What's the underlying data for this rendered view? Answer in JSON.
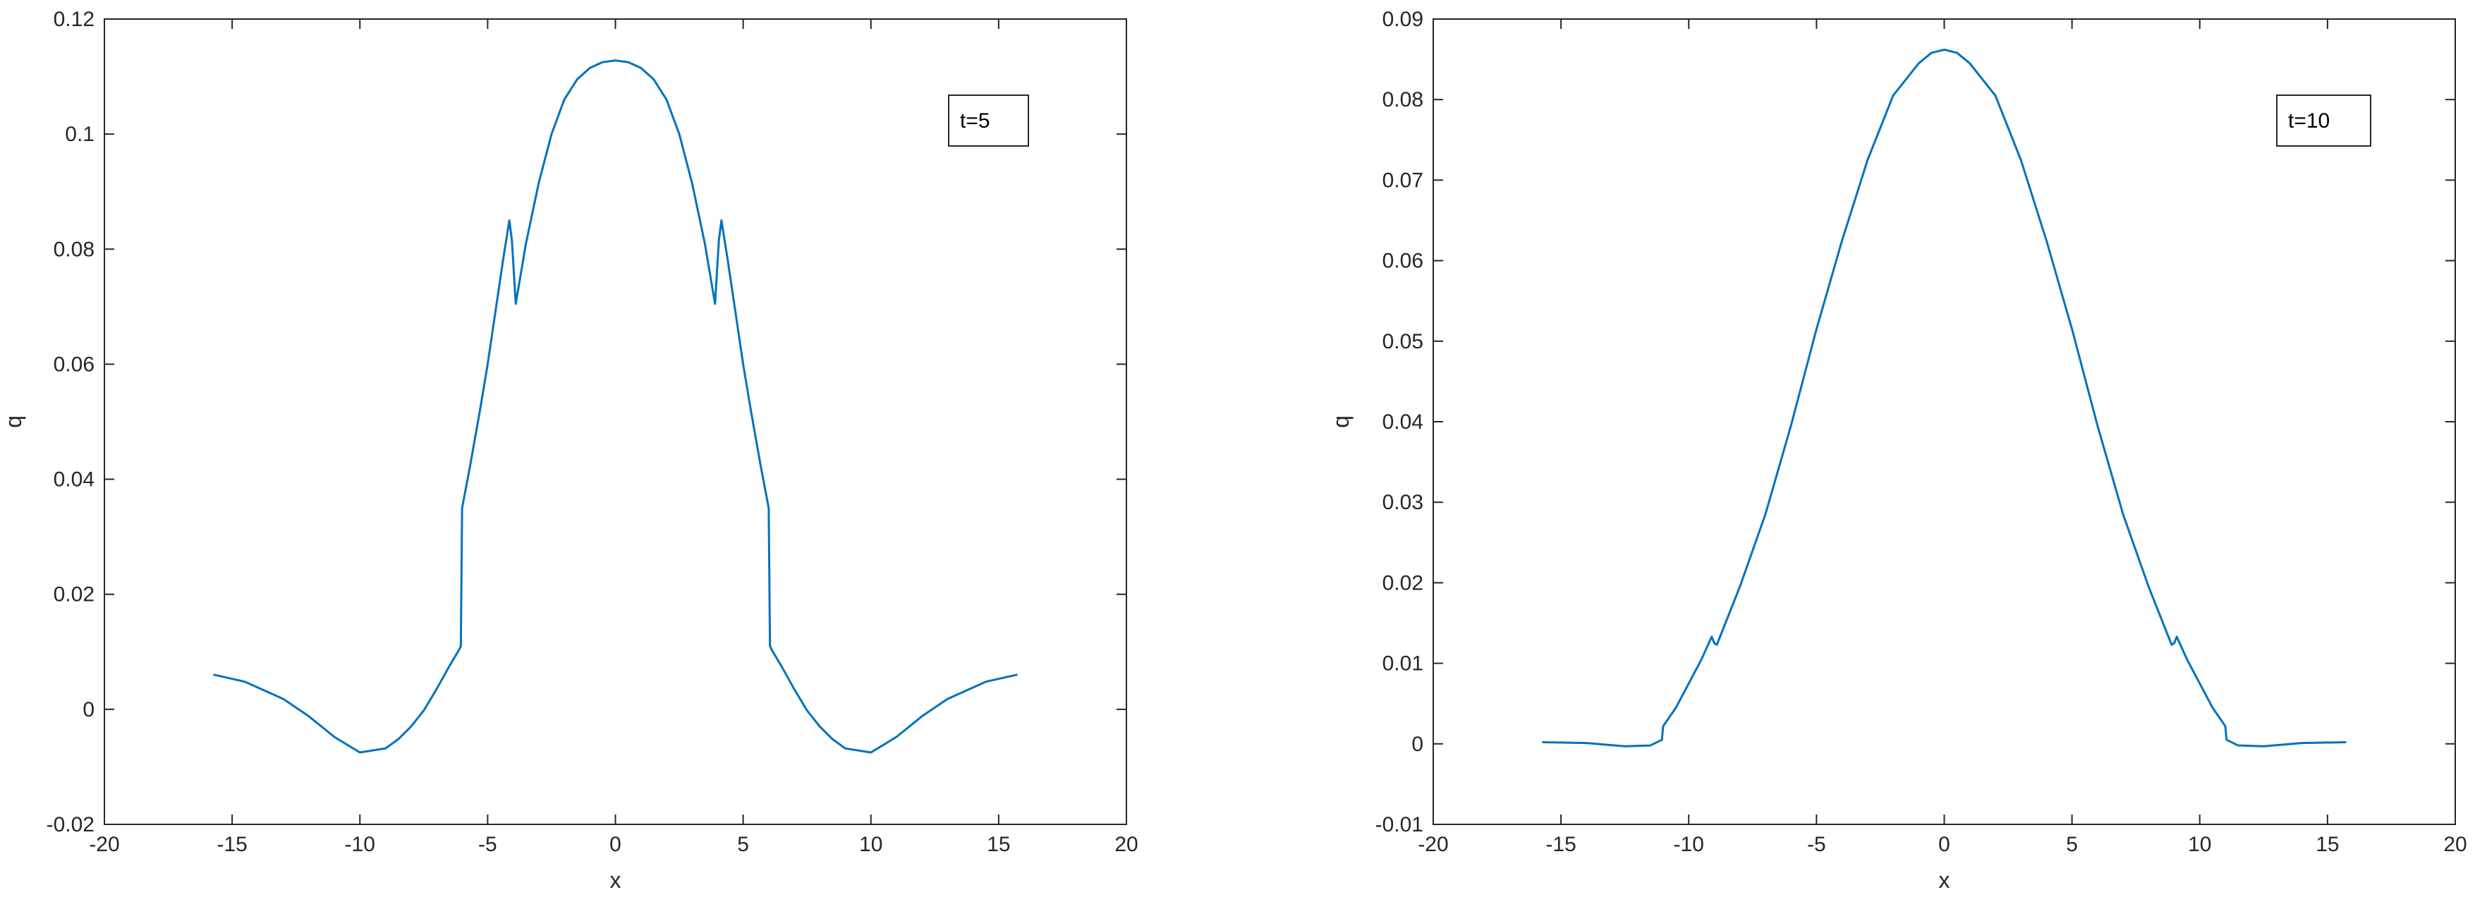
{
  "chart_data": [
    {
      "type": "line",
      "xlabel": "x",
      "ylabel": "q",
      "xlim": [
        -20,
        20
      ],
      "ylim": [
        -0.02,
        0.12
      ],
      "x_ticks": [
        -20,
        -15,
        -10,
        -5,
        0,
        5,
        10,
        15,
        20
      ],
      "x_tick_labels": [
        "-20",
        "-15",
        "-10",
        "-5",
        "0",
        "5",
        "10",
        "15",
        "20"
      ],
      "y_ticks": [
        -0.02,
        0,
        0.02,
        0.04,
        0.06,
        0.08,
        0.1,
        0.12
      ],
      "y_tick_labels": [
        "-0.02",
        "0",
        "0.02",
        "0.04",
        "0.06",
        "0.08",
        "0.1",
        "0.12"
      ],
      "grid": false,
      "legend": "t=5",
      "legend_position": "top-right",
      "line_color": "#0072BD",
      "series": [
        {
          "x": [
            -15.7,
            -14.5,
            -13,
            -12,
            -11,
            -10,
            -9,
            -8.5,
            -8,
            -7.5,
            -7,
            -6.5,
            -6.1,
            -6.05,
            -6.0,
            -5.7,
            -5.3,
            -5,
            -4.7,
            -4.4,
            -4.15,
            -4.05,
            -3.9,
            -3.5,
            -3,
            -2.5,
            -2,
            -1.5,
            -1,
            -0.5,
            0,
            0.5,
            1,
            1.5,
            2,
            2.5,
            3,
            3.5,
            3.9,
            4.05,
            4.15,
            4.4,
            4.7,
            5,
            5.3,
            5.7,
            6.0,
            6.05,
            6.1,
            6.5,
            7,
            7.5,
            8,
            8.5,
            9,
            10,
            11,
            12,
            13,
            14.5,
            15.7
          ],
          "y": [
            0.006,
            0.0048,
            0.0018,
            -0.0012,
            -0.0048,
            -0.0075,
            -0.0068,
            -0.0052,
            -0.003,
            -0.0002,
            0.0035,
            0.0075,
            0.0105,
            0.011,
            0.035,
            0.042,
            0.052,
            0.06,
            0.069,
            0.078,
            0.085,
            0.0815,
            0.0705,
            0.081,
            0.0915,
            0.1,
            0.106,
            0.1095,
            0.1115,
            0.1125,
            0.1128,
            0.1125,
            0.1115,
            0.1095,
            0.106,
            0.1,
            0.0915,
            0.081,
            0.0705,
            0.0815,
            0.085,
            0.078,
            0.069,
            0.06,
            0.052,
            0.042,
            0.035,
            0.011,
            0.0105,
            0.0075,
            0.0035,
            -0.0002,
            -0.003,
            -0.0052,
            -0.0068,
            -0.0075,
            -0.0048,
            -0.0012,
            0.0018,
            0.0048,
            0.006
          ]
        }
      ]
    },
    {
      "type": "line",
      "xlabel": "x",
      "ylabel": "q",
      "xlim": [
        -20,
        20
      ],
      "ylim": [
        -0.01,
        0.09
      ],
      "x_ticks": [
        -20,
        -15,
        -10,
        -5,
        0,
        5,
        10,
        15,
        20
      ],
      "x_tick_labels": [
        "-20",
        "-15",
        "-10",
        "-5",
        "0",
        "5",
        "10",
        "15",
        "20"
      ],
      "y_ticks": [
        -0.01,
        0,
        0.01,
        0.02,
        0.03,
        0.04,
        0.05,
        0.06,
        0.07,
        0.08,
        0.09
      ],
      "y_tick_labels": [
        "-0.01",
        "0",
        "0.01",
        "0.02",
        "0.03",
        "0.04",
        "0.05",
        "0.06",
        "0.07",
        "0.08",
        "0.09"
      ],
      "grid": false,
      "legend": "t=10",
      "legend_position": "top-right",
      "line_color": "#0072BD",
      "series": [
        {
          "x": [
            -15.7,
            -14,
            -12.5,
            -11.5,
            -11.05,
            -11.0,
            -10.5,
            -10,
            -9.5,
            -9.1,
            -9.0,
            -8.9,
            -8.5,
            -8,
            -7,
            -6,
            -5,
            -4,
            -3,
            -2,
            -1,
            -0.5,
            0,
            0.5,
            1,
            2,
            3,
            4,
            5,
            6,
            7,
            8,
            8.5,
            8.9,
            9.0,
            9.1,
            9.5,
            10,
            10.5,
            11.0,
            11.05,
            11.5,
            12.5,
            14,
            15.7
          ],
          "y": [
            0.0002,
            0.0001,
            -0.0003,
            -0.0002,
            0.0005,
            0.0022,
            0.0045,
            0.0075,
            0.0105,
            0.0133,
            0.0125,
            0.0123,
            0.0155,
            0.0195,
            0.0285,
            0.0395,
            0.0515,
            0.0625,
            0.0725,
            0.0805,
            0.0845,
            0.0858,
            0.0862,
            0.0858,
            0.0845,
            0.0805,
            0.0725,
            0.0625,
            0.0515,
            0.0395,
            0.0285,
            0.0195,
            0.0155,
            0.0123,
            0.0125,
            0.0133,
            0.0105,
            0.0075,
            0.0045,
            0.0022,
            0.0005,
            -0.0002,
            -0.0003,
            0.0001,
            0.0002
          ]
        }
      ]
    }
  ]
}
